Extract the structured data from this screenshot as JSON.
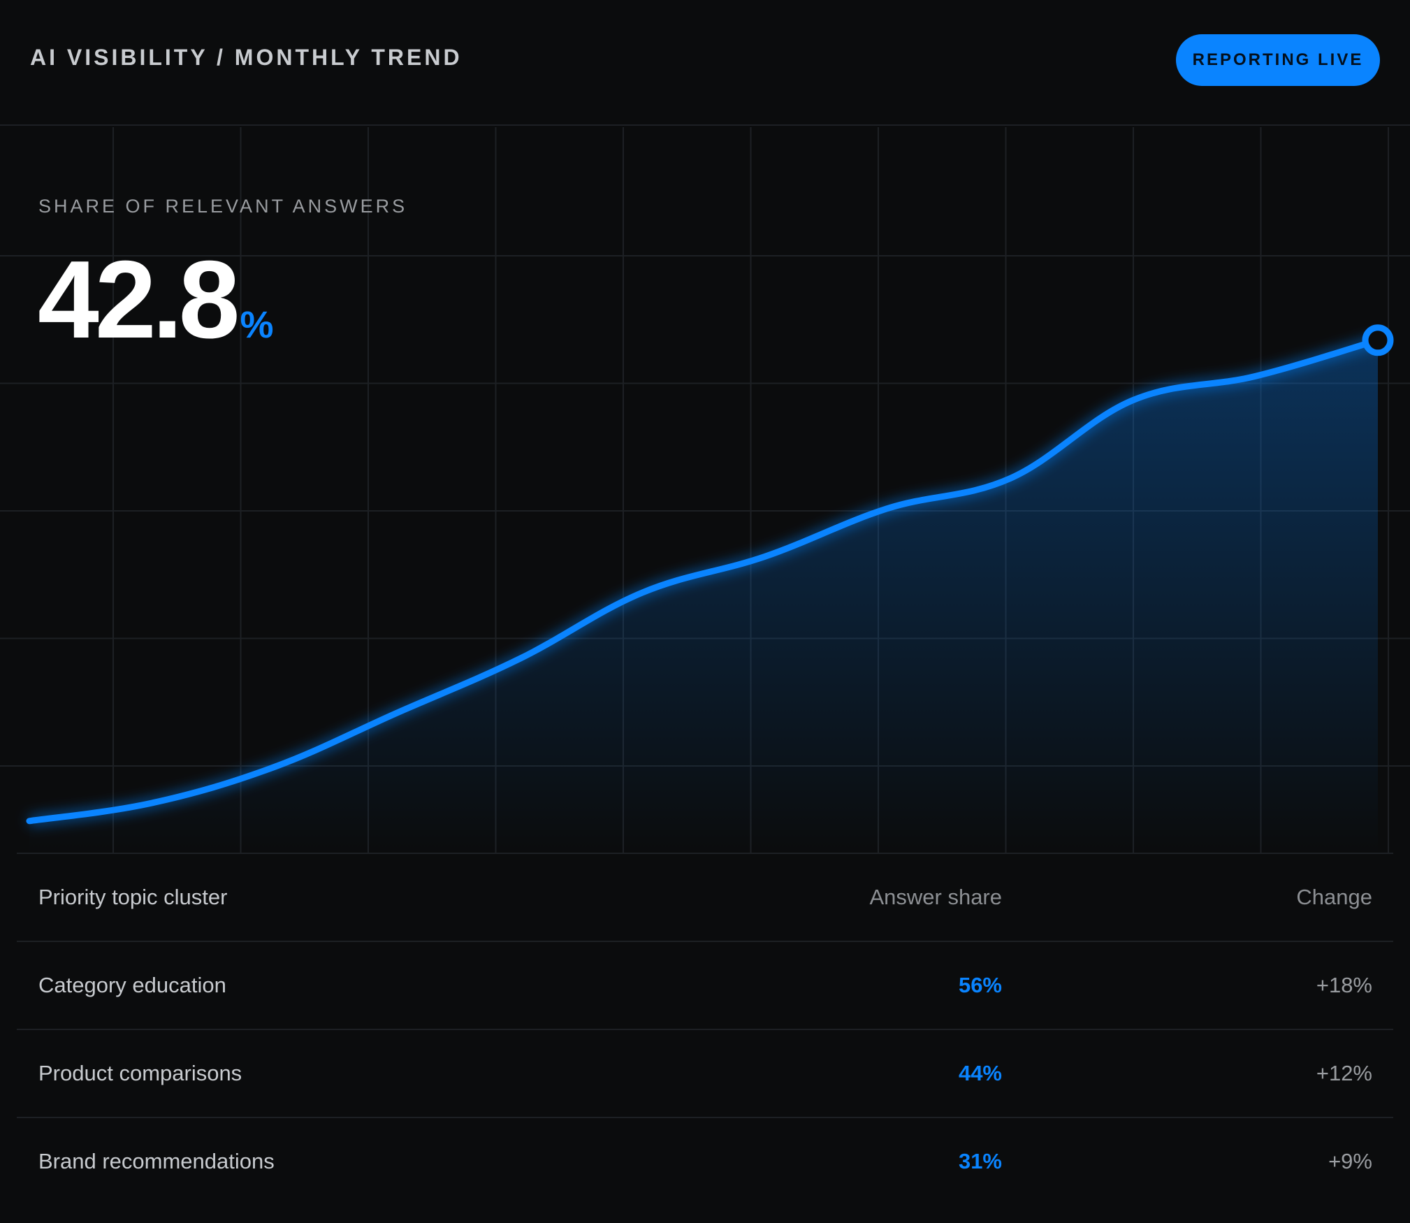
{
  "header": {
    "title": "AI VISIBILITY / MONTHLY TREND",
    "status_badge": "REPORTING LIVE"
  },
  "metric": {
    "label": "SHARE OF RELEVANT ANSWERS",
    "value": "42.8",
    "unit": "%"
  },
  "colors": {
    "background": "#0b0c0d",
    "accent": "#0a84ff",
    "grid": "#1d2024"
  },
  "chart_data": {
    "type": "area",
    "title": "",
    "xlabel": "",
    "ylabel": "",
    "x": [
      0,
      1,
      2,
      3,
      4,
      5,
      6,
      7,
      8,
      9,
      10,
      11
    ],
    "series": [
      {
        "values": [
          2,
          5,
          11,
          20,
          29,
          40,
          46,
          54,
          59,
          72,
          76,
          82
        ]
      }
    ],
    "ylim": [
      0,
      100
    ],
    "grid": true,
    "legend": "none"
  },
  "table": {
    "headers": [
      "Priority topic cluster",
      "Answer share",
      "Change"
    ],
    "rows": [
      {
        "name": "Category education",
        "share": "56%",
        "change": "+18%"
      },
      {
        "name": "Product comparisons",
        "share": "44%",
        "change": "+12%"
      },
      {
        "name": "Brand recommendations",
        "share": "31%",
        "change": "+9%"
      }
    ]
  }
}
